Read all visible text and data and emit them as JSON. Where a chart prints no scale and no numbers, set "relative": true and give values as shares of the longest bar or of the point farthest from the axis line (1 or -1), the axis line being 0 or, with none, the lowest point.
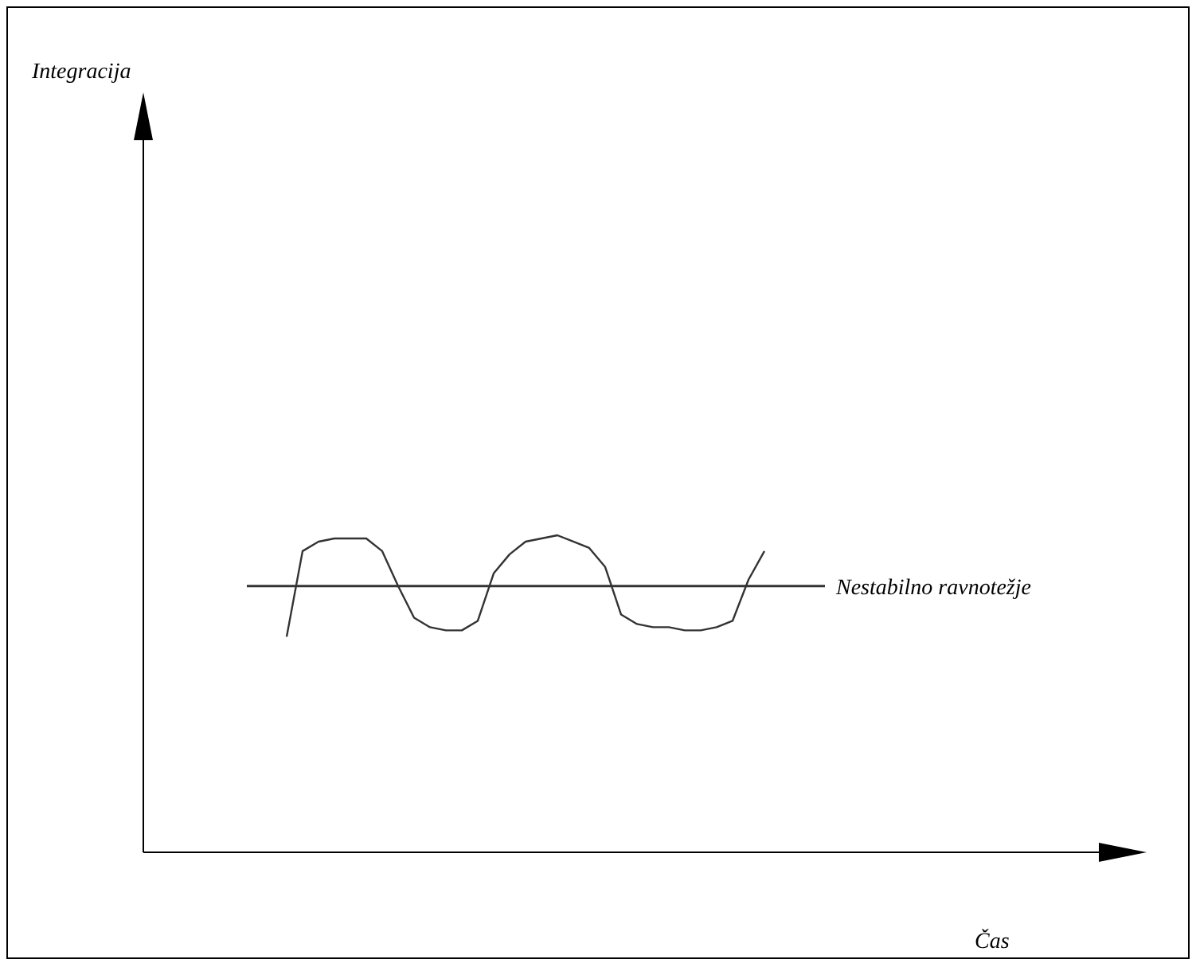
{
  "chart_data": {
    "type": "line",
    "relative": true,
    "annotations": [
      "Integracija",
      "Čas"
    ],
    "color": "#333333",
    "line_style": "solid",
    "marker": "none",
    "categories": [
      null,
      null,
      null,
      null,
      null,
      null,
      null,
      null,
      null,
      null,
      null,
      null,
      null,
      null,
      null,
      null,
      null,
      null,
      null,
      null,
      null,
      null,
      null,
      null,
      null,
      null,
      null,
      null,
      null,
      null,
      null
    ],
    "values": [
      0.68,
      0.95,
      0.98,
      0.99,
      0.99,
      0.99,
      0.95,
      0.84,
      0.74,
      0.71,
      0.7,
      0.7,
      0.73,
      0.88,
      0.94,
      0.98,
      0.99,
      1,
      0.98,
      0.96,
      0.9,
      0.75,
      0.72,
      0.71,
      0.71,
      0.7,
      0.7,
      0.71,
      0.73,
      0.86,
      0.95
    ],
    "ref_lines": [
      {
        "axis": "y",
        "value": 0.84,
        "label": "Nestabilno ravnotežje",
        "color": "#333333"
      }
    ]
  }
}
